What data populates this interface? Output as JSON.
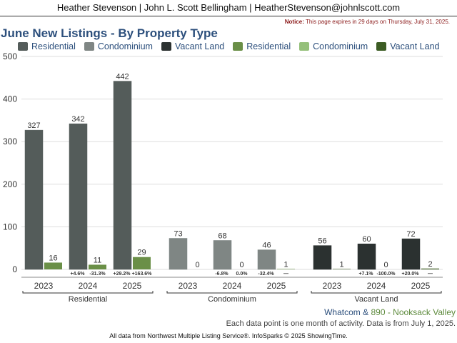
{
  "header": {
    "agents": "Heather Stevenson | John L. Scott Bellingham | HeatherStevenson@johnlscott.com"
  },
  "notice": {
    "label": "Notice:",
    "text": "This page expires in 29 days on Thursday, July 31, 2025."
  },
  "colors": {
    "residential_dark": "#545c5a",
    "condominium_dark": "#7f8684",
    "vacant_dark": "#2b3130",
    "residential_light": "#6a8f47",
    "condominium_light": "#95c07a",
    "vacant_light": "#3c5c23",
    "title": "#2c4f7c"
  },
  "footer": {
    "area": "Whatcom",
    "sep": "&",
    "subarea": "890 - Nooksack Valley",
    "info": "Each data point is one month of activity. Data is from July 1, 2025.",
    "credit": "All data from Northwest Multiple Listing Service®. InfoSparks © 2025 ShowingTime."
  },
  "chart_data": {
    "type": "bar",
    "title": "June New Listings - By Property Type",
    "legend": [
      {
        "name": "Residential",
        "color": "#545c5a"
      },
      {
        "name": "Condominium",
        "color": "#7f8684"
      },
      {
        "name": "Vacant Land",
        "color": "#2b3130"
      },
      {
        "name": "Residential",
        "color": "#6a8f47"
      },
      {
        "name": "Condominium",
        "color": "#95c07a"
      },
      {
        "name": "Vacant Land",
        "color": "#3c5c23"
      }
    ],
    "legend_position": "top",
    "ylim": [
      0,
      500
    ],
    "yticks": [
      0,
      100,
      200,
      300,
      400,
      500
    ],
    "grid": true,
    "groups": [
      {
        "name": "Residential",
        "years": [
          "2023",
          "2024",
          "2025"
        ],
        "primary": [
          327,
          342,
          442
        ],
        "secondary": [
          16,
          11,
          29
        ],
        "pct_primary": [
          "",
          "+4.6%",
          "+29.2%"
        ],
        "pct_secondary": [
          "",
          "-31.3%",
          "+163.6%"
        ]
      },
      {
        "name": "Condominium",
        "years": [
          "2023",
          "2024",
          "2025"
        ],
        "primary": [
          73,
          68,
          46
        ],
        "secondary": [
          0,
          0,
          1
        ],
        "pct_primary": [
          "",
          "-6.8%",
          "-32.4%"
        ],
        "pct_secondary": [
          "",
          "0.0%",
          "—"
        ]
      },
      {
        "name": "Vacant Land",
        "years": [
          "2023",
          "2024",
          "2025"
        ],
        "primary": [
          56,
          60,
          72
        ],
        "secondary": [
          1,
          0,
          2
        ],
        "pct_primary": [
          "",
          "+7.1%",
          "+20.0%"
        ],
        "pct_secondary": [
          "",
          "-100.0%",
          "—"
        ]
      }
    ]
  }
}
